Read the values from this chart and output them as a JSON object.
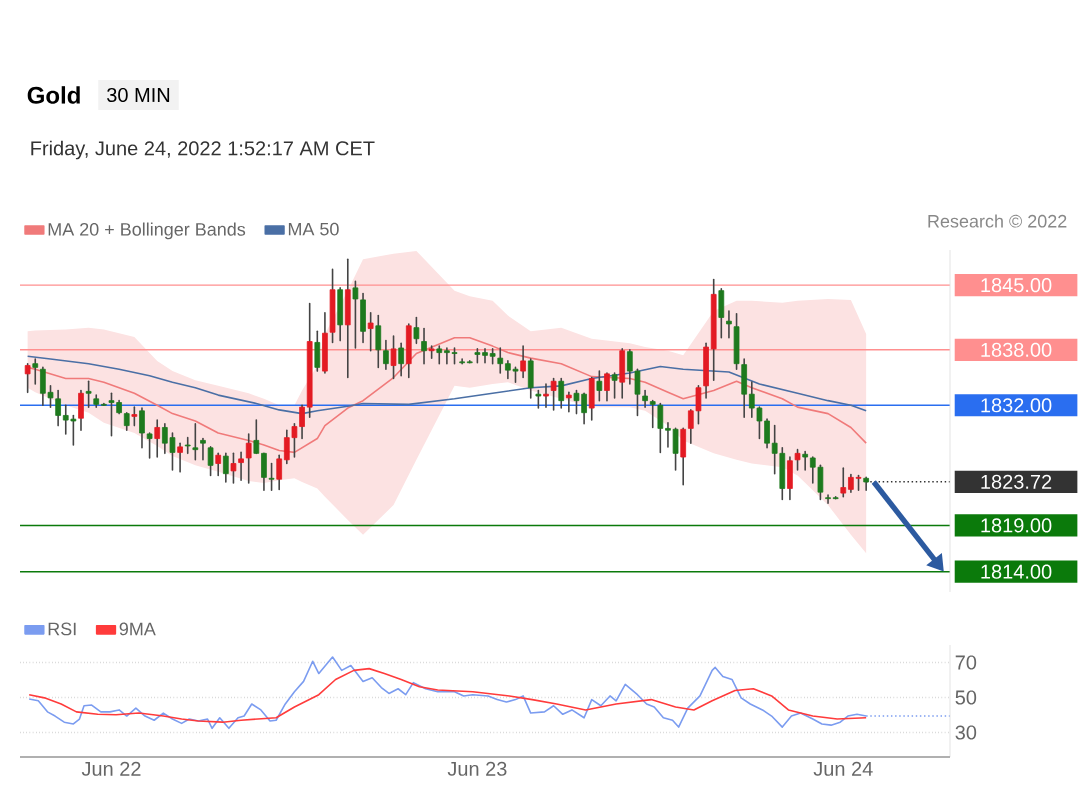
{
  "chart_data": [
    {
      "type": "candlestick",
      "title": "Gold",
      "subtitle": "30 MIN",
      "annotations": [
        "Friday, June 24, 2022 1:52:17 AM CET",
        "Research © 2022"
      ],
      "x": [
        "2022-06-21T18:30",
        "2022-06-21T19:00",
        "2022-06-21T19:30",
        "2022-06-21T20:00",
        "2022-06-21T20:30",
        "2022-06-21T21:00",
        "2022-06-21T21:30",
        "2022-06-21T22:00",
        "2022-06-21T22:30",
        "2022-06-21T23:00",
        "2022-06-21T23:30",
        "2022-06-22T00:00",
        "2022-06-22T00:30",
        "2022-06-22T01:00",
        "2022-06-22T01:30",
        "2022-06-22T02:00",
        "2022-06-22T02:30",
        "2022-06-22T03:00",
        "2022-06-22T03:30",
        "2022-06-22T04:00",
        "2022-06-22T04:30",
        "2022-06-22T05:00",
        "2022-06-22T05:30",
        "2022-06-22T06:00",
        "2022-06-22T06:30",
        "2022-06-22T07:00",
        "2022-06-22T07:30",
        "2022-06-22T08:00",
        "2022-06-22T08:30",
        "2022-06-22T09:00",
        "2022-06-22T09:30",
        "2022-06-22T10:00",
        "2022-06-22T10:30",
        "2022-06-22T11:00",
        "2022-06-22T11:30",
        "2022-06-22T12:00",
        "2022-06-22T12:30",
        "2022-06-22T13:00",
        "2022-06-22T13:30",
        "2022-06-22T14:00",
        "2022-06-22T14:30",
        "2022-06-22T15:00",
        "2022-06-22T15:30",
        "2022-06-22T16:00",
        "2022-06-22T16:30",
        "2022-06-22T17:00",
        "2022-06-22T17:30",
        "2022-06-22T18:00",
        "2022-06-22T18:30",
        "2022-06-22T19:00",
        "2022-06-22T19:30",
        "2022-06-22T20:00",
        "2022-06-22T20:30",
        "2022-06-22T21:00",
        "2022-06-22T21:30",
        "2022-06-22T22:00",
        "2022-06-22T22:30",
        "2022-06-22T23:00",
        "2022-06-22T23:30",
        "2022-06-23T00:00",
        "2022-06-23T00:30",
        "2022-06-23T01:00",
        "2022-06-23T01:30",
        "2022-06-23T02:00",
        "2022-06-23T02:30",
        "2022-06-23T03:00",
        "2022-06-23T03:30",
        "2022-06-23T04:00",
        "2022-06-23T04:30",
        "2022-06-23T05:00",
        "2022-06-23T05:30",
        "2022-06-23T06:00",
        "2022-06-23T06:30",
        "2022-06-23T07:00",
        "2022-06-23T07:30",
        "2022-06-23T08:00",
        "2022-06-23T08:30",
        "2022-06-23T09:00",
        "2022-06-23T09:30",
        "2022-06-23T10:00",
        "2022-06-23T10:30",
        "2022-06-23T11:00",
        "2022-06-23T11:30",
        "2022-06-23T12:00",
        "2022-06-23T12:30",
        "2022-06-23T13:00",
        "2022-06-23T13:30",
        "2022-06-23T14:00",
        "2022-06-23T14:30",
        "2022-06-23T15:00",
        "2022-06-23T15:30",
        "2022-06-23T16:00",
        "2022-06-23T16:30",
        "2022-06-23T17:00",
        "2022-06-23T17:30",
        "2022-06-23T18:00",
        "2022-06-23T18:30",
        "2022-06-23T19:00",
        "2022-06-23T19:30",
        "2022-06-23T20:00",
        "2022-06-23T20:30",
        "2022-06-23T21:00",
        "2022-06-23T21:30",
        "2022-06-23T22:00",
        "2022-06-23T22:30",
        "2022-06-23T23:00",
        "2022-06-23T23:30",
        "2022-06-24T00:00",
        "2022-06-24T00:30",
        "2022-06-24T01:00",
        "2022-06-24T01:30"
      ],
      "ohlc": [
        [
          1835.4,
          1836.5,
          1833.4,
          1836.3
        ],
        [
          1836.5,
          1837.0,
          1834.3,
          1836.1
        ],
        [
          1835.9,
          1836.1,
          1832.0,
          1833.3
        ],
        [
          1833.4,
          1834.1,
          1831.8,
          1832.8
        ],
        [
          1832.7,
          1833.6,
          1829.8,
          1830.9
        ],
        [
          1830.9,
          1832.0,
          1828.9,
          1830.4
        ],
        [
          1830.5,
          1830.9,
          1827.7,
          1830.3
        ],
        [
          1830.6,
          1833.6,
          1829.3,
          1833.3
        ],
        [
          1833.5,
          1834.6,
          1831.8,
          1833.3
        ],
        [
          1832.7,
          1833.1,
          1831.8,
          1832.1
        ],
        [
          1832.1,
          1832.2,
          1832.0,
          1832.0
        ],
        [
          1832.5,
          1833.3,
          1828.7,
          1832.3
        ],
        [
          1832.3,
          1832.5,
          1831.1,
          1831.2
        ],
        [
          1831.1,
          1831.2,
          1829.3,
          1829.8
        ],
        [
          1830.8,
          1831.8,
          1829.8,
          1831.0
        ],
        [
          1831.4,
          1831.7,
          1827.4,
          1829.0
        ],
        [
          1828.9,
          1829.0,
          1826.3,
          1828.4
        ],
        [
          1828.4,
          1830.4,
          1826.4,
          1829.6
        ],
        [
          1829.6,
          1830.0,
          1826.8,
          1827.9
        ],
        [
          1828.5,
          1829.0,
          1825.0,
          1826.9
        ],
        [
          1826.9,
          1827.9,
          1824.8,
          1827.5
        ],
        [
          1827.7,
          1828.5,
          1826.8,
          1827.6
        ],
        [
          1827.4,
          1830.0,
          1826.1,
          1827.2
        ],
        [
          1828.2,
          1828.4,
          1826.1,
          1827.9
        ],
        [
          1827.4,
          1827.5,
          1824.4,
          1825.5
        ],
        [
          1825.7,
          1826.8,
          1824.4,
          1826.6
        ],
        [
          1826.5,
          1826.8,
          1823.7,
          1824.6
        ],
        [
          1824.9,
          1826.8,
          1823.6,
          1825.7
        ],
        [
          1825.8,
          1826.9,
          1823.9,
          1826.2
        ],
        [
          1826.3,
          1828.9,
          1823.6,
          1827.9
        ],
        [
          1828.2,
          1830.4,
          1826.8,
          1826.8
        ],
        [
          1826.8,
          1826.8,
          1822.8,
          1824.2
        ],
        [
          1824.1,
          1825.7,
          1822.8,
          1824.0
        ],
        [
          1824.0,
          1826.6,
          1822.9,
          1826.2
        ],
        [
          1826.1,
          1829.3,
          1825.7,
          1828.5
        ],
        [
          1828.5,
          1830.0,
          1826.4,
          1829.7
        ],
        [
          1829.7,
          1832.0,
          1828.4,
          1831.8
        ],
        [
          1831.8,
          1843.0,
          1830.7,
          1838.9
        ],
        [
          1838.8,
          1840.0,
          1835.7,
          1836.1
        ],
        [
          1835.7,
          1842.0,
          1835.5,
          1839.8
        ],
        [
          1839.9,
          1846.7,
          1838.8,
          1844.5
        ],
        [
          1844.5,
          1844.7,
          1839.0,
          1840.7
        ],
        [
          1840.7,
          1847.8,
          1835.0,
          1844.5
        ],
        [
          1844.7,
          1845.4,
          1838.2,
          1843.5
        ],
        [
          1843.4,
          1844.1,
          1838.8,
          1840.0
        ],
        [
          1840.3,
          1842.0,
          1837.9,
          1840.9
        ],
        [
          1840.6,
          1841.7,
          1836.1,
          1838.0
        ],
        [
          1837.9,
          1839.0,
          1835.9,
          1836.5
        ],
        [
          1836.3,
          1839.5,
          1834.9,
          1838.1
        ],
        [
          1838.2,
          1838.7,
          1835.2,
          1836.5
        ],
        [
          1836.5,
          1840.8,
          1835.0,
          1840.6
        ],
        [
          1840.4,
          1841.5,
          1838.7,
          1839.2
        ],
        [
          1838.9,
          1840.3,
          1836.5,
          1837.9
        ],
        [
          1837.9,
          1838.4,
          1837.1,
          1838.1
        ],
        [
          1838.1,
          1838.4,
          1836.5,
          1837.7
        ],
        [
          1837.9,
          1838.2,
          1836.5,
          1837.7
        ],
        [
          1837.7,
          1838.2,
          1836.5,
          1837.6
        ],
        [
          1836.7,
          1837.0,
          1836.5,
          1836.6
        ],
        [
          1836.7,
          1836.8,
          1836.6,
          1836.6
        ],
        [
          1837.7,
          1838.1,
          1836.6,
          1837.5
        ],
        [
          1837.7,
          1838.1,
          1836.6,
          1837.4
        ],
        [
          1837.6,
          1838.1,
          1836.5,
          1837.3
        ],
        [
          1837.1,
          1838.2,
          1835.5,
          1836.5
        ],
        [
          1836.5,
          1836.8,
          1834.9,
          1835.8
        ],
        [
          1835.9,
          1836.1,
          1834.5,
          1835.7
        ],
        [
          1835.7,
          1838.4,
          1835.0,
          1836.8
        ],
        [
          1836.8,
          1837.0,
          1832.8,
          1833.9
        ],
        [
          1833.2,
          1833.6,
          1831.7,
          1833.0
        ],
        [
          1833.0,
          1834.3,
          1831.8,
          1833.2
        ],
        [
          1833.6,
          1834.9,
          1831.5,
          1834.6
        ],
        [
          1834.6,
          1834.9,
          1831.7,
          1832.5
        ],
        [
          1832.8,
          1833.4,
          1831.3,
          1833.1
        ],
        [
          1833.3,
          1833.6,
          1831.1,
          1832.5
        ],
        [
          1833.2,
          1833.3,
          1830.0,
          1831.2
        ],
        [
          1831.7,
          1835.0,
          1830.4,
          1834.9
        ],
        [
          1834.6,
          1835.7,
          1832.5,
          1833.6
        ],
        [
          1833.6,
          1835.5,
          1832.5,
          1835.4
        ],
        [
          1835.3,
          1835.5,
          1832.8,
          1834.7
        ],
        [
          1834.5,
          1838.1,
          1832.8,
          1837.9
        ],
        [
          1837.8,
          1838.0,
          1834.3,
          1835.7
        ],
        [
          1835.7,
          1835.9,
          1830.9,
          1833.2
        ],
        [
          1833.0,
          1833.6,
          1831.8,
          1832.5
        ],
        [
          1832.4,
          1832.5,
          1829.6,
          1832.1
        ],
        [
          1832.0,
          1832.2,
          1826.9,
          1829.5
        ],
        [
          1829.5,
          1830.1,
          1827.5,
          1829.3
        ],
        [
          1829.4,
          1829.5,
          1825.0,
          1826.8
        ],
        [
          1826.4,
          1829.5,
          1823.4,
          1829.4
        ],
        [
          1829.5,
          1831.5,
          1827.9,
          1831.4
        ],
        [
          1831.4,
          1834.1,
          1830.0,
          1833.9
        ],
        [
          1834.1,
          1838.7,
          1832.8,
          1838.3
        ],
        [
          1838.1,
          1845.6,
          1834.7,
          1844.0
        ],
        [
          1844.4,
          1844.6,
          1839.3,
          1841.5
        ],
        [
          1841.1,
          1842.2,
          1839.3,
          1840.8
        ],
        [
          1840.5,
          1841.9,
          1835.9,
          1836.5
        ],
        [
          1836.4,
          1837.0,
          1830.7,
          1833.2
        ],
        [
          1833.2,
          1834.5,
          1830.7,
          1831.7
        ],
        [
          1831.7,
          1831.8,
          1828.4,
          1830.3
        ],
        [
          1830.3,
          1830.5,
          1827.4,
          1827.9
        ],
        [
          1827.9,
          1829.8,
          1824.6,
          1826.8
        ],
        [
          1826.8,
          1827.4,
          1821.8,
          1823.0
        ],
        [
          1823.0,
          1826.4,
          1821.8,
          1826.0
        ],
        [
          1826.1,
          1827.2,
          1825.0,
          1826.8
        ],
        [
          1826.7,
          1827.0,
          1825.0,
          1826.4
        ],
        [
          1826.3,
          1826.4,
          1823.6,
          1825.3
        ],
        [
          1825.3,
          1825.5,
          1821.8,
          1822.6
        ],
        [
          1822.0,
          1822.3,
          1821.4,
          1821.9
        ],
        [
          1822.0,
          1822.1,
          1821.9,
          1821.9
        ],
        [
          1822.5,
          1825.2,
          1822.1,
          1823.1
        ],
        [
          1822.9,
          1824.5,
          1822.6,
          1824.2
        ],
        [
          1824.1,
          1824.4,
          1822.8,
          1824.2
        ],
        [
          1824.1,
          1824.2,
          1822.8,
          1823.7
        ]
      ],
      "colors": [
        "#e31b23",
        "#1e7a1e",
        "#1e7a1e",
        "#1e7a1e",
        "#1e7a1e",
        "#1e7a1e",
        "#1e7a1e",
        "#e31b23",
        "#1e7a1e",
        "#1e7a1e",
        "#1e7a1e",
        "#1e7a1e",
        "#1e7a1e",
        "#1e7a1e",
        "#e31b23",
        "#1e7a1e",
        "#1e7a1e",
        "#e31b23",
        "#1e7a1e",
        "#1e7a1e",
        "#e31b23",
        "#1e7a1e",
        "#1e7a1e",
        "#1e7a1e",
        "#1e7a1e",
        "#e31b23",
        "#1e7a1e",
        "#e31b23",
        "#e31b23",
        "#e31b23",
        "#1e7a1e",
        "#1e7a1e",
        "#1e7a1e",
        "#e31b23",
        "#e31b23",
        "#e31b23",
        "#e31b23",
        "#e31b23",
        "#1e7a1e",
        "#e31b23",
        "#e31b23",
        "#1e7a1e",
        "#e31b23",
        "#1e7a1e",
        "#1e7a1e",
        "#e31b23",
        "#1e7a1e",
        "#1e7a1e",
        "#e31b23",
        "#1e7a1e",
        "#e31b23",
        "#1e7a1e",
        "#1e7a1e",
        "#e31b23",
        "#1e7a1e",
        "#1e7a1e",
        "#1e7a1e",
        "#1e7a1e",
        "#1e7a1e",
        "#1e7a1e",
        "#1e7a1e",
        "#1e7a1e",
        "#1e7a1e",
        "#1e7a1e",
        "#1e7a1e",
        "#e31b23",
        "#1e7a1e",
        "#1e7a1e",
        "#e31b23",
        "#e31b23",
        "#1e7a1e",
        "#e31b23",
        "#1e7a1e",
        "#1e7a1e",
        "#e31b23",
        "#1e7a1e",
        "#e31b23",
        "#1e7a1e",
        "#e31b23",
        "#1e7a1e",
        "#1e7a1e",
        "#1e7a1e",
        "#1e7a1e",
        "#1e7a1e",
        "#1e7a1e",
        "#1e7a1e",
        "#e31b23",
        "#e31b23",
        "#e31b23",
        "#e31b23",
        "#e31b23",
        "#1e7a1e",
        "#1e7a1e",
        "#1e7a1e",
        "#1e7a1e",
        "#1e7a1e",
        "#1e7a1e",
        "#1e7a1e",
        "#1e7a1e",
        "#1e7a1e",
        "#e31b23",
        "#e31b23",
        "#1e7a1e",
        "#1e7a1e",
        "#1e7a1e",
        "#1e7a1e",
        "#1e7a1e",
        "#e31b23",
        "#e31b23",
        "#e31b23",
        "#1e7a1e"
      ],
      "series": [
        {
          "type": "line",
          "name": "MA 20 + Bollinger Bands",
          "color": "#f07a7a",
          "x": [
            "2022-06-21T18:30",
            "2022-06-21T19:00",
            "2022-06-21T21:00",
            "2022-06-21T22:30",
            "2022-06-21T23:30",
            "2022-06-22T01:30",
            "2022-06-22T03:00",
            "2022-06-22T04:00",
            "2022-06-22T05:30",
            "2022-06-22T07:00",
            "2022-06-22T09:00",
            "2022-06-22T10:00",
            "2022-06-22T11:00",
            "2022-06-22T12:00",
            "2022-06-22T12:30",
            "2022-06-22T13:30",
            "2022-06-22T14:00",
            "2022-06-22T15:30",
            "2022-06-22T16:30",
            "2022-06-22T18:30",
            "2022-06-22T20:00",
            "2022-06-22T22:30",
            "2022-06-22T23:30",
            "2022-06-23T01:00",
            "2022-06-23T02:00",
            "2022-06-23T03:30",
            "2022-06-23T05:30",
            "2022-06-23T07:30",
            "2022-06-23T10:00",
            "2022-06-23T11:00",
            "2022-06-23T12:30",
            "2022-06-23T13:30",
            "2022-06-23T15:30",
            "2022-06-23T17:00",
            "2022-06-23T18:00",
            "2022-06-23T20:00",
            "2022-06-23T21:00",
            "2022-06-23T23:00",
            "2022-06-24T00:30",
            "2022-06-24T01:30"
          ],
          "values": [
            1836.1,
            1835.9,
            1834.9,
            1834.9,
            1834.5,
            1833.3,
            1832.0,
            1831.1,
            1830.3,
            1829.0,
            1828.2,
            1827.7,
            1827.1,
            1826.9,
            1827.4,
            1828.4,
            1829.8,
            1831.7,
            1832.5,
            1835.0,
            1837.6,
            1839.3,
            1839.3,
            1838.4,
            1837.7,
            1837.1,
            1836.5,
            1835.1,
            1834.9,
            1834.5,
            1833.4,
            1832.7,
            1833.6,
            1834.6,
            1833.9,
            1832.7,
            1831.8,
            1831.1,
            1829.6,
            1827.9
          ],
          "upper": [
            1840.0,
            1840.1,
            1840.2,
            1840.4,
            1840.2,
            1839.4,
            1836.8,
            1835.7,
            1834.7,
            1834.1,
            1833.3,
            1832.7,
            1832.0,
            1832.0,
            1833.6,
            1836.3,
            1839.7,
            1844.4,
            1847.8,
            1848.4,
            1848.7,
            1844.4,
            1843.8,
            1843.3,
            1841.7,
            1840.0,
            1840.4,
            1839.2,
            1838.7,
            1838.3,
            1837.9,
            1837.4,
            1842.2,
            1843.3,
            1843.3,
            1843.1,
            1843.3,
            1843.5,
            1843.4,
            1839.7
          ],
          "lower": [
            1833.9,
            1833.4,
            1832.0,
            1831.2,
            1830.1,
            1829.0,
            1827.6,
            1826.5,
            1825.5,
            1824.8,
            1823.8,
            1823.6,
            1823.9,
            1824.1,
            1823.7,
            1823.0,
            1822.1,
            1819.6,
            1818.0,
            1821.2,
            1826.1,
            1834.1,
            1833.9,
            1834.3,
            1834.5,
            1833.6,
            1832.7,
            1831.8,
            1831.8,
            1831.4,
            1829.8,
            1828.2,
            1826.8,
            1826.1,
            1825.7,
            1825.3,
            1824.4,
            1821.2,
            1818.0,
            1816.0
          ]
        },
        {
          "type": "line",
          "name": "MA 50",
          "color": "#4a6fa5",
          "x": [
            "2022-06-21T18:30",
            "2022-06-21T20:00",
            "2022-06-21T22:30",
            "2022-06-22T00:30",
            "2022-06-22T02:30",
            "2022-06-22T04:00",
            "2022-06-22T05:30",
            "2022-06-22T07:00",
            "2022-06-22T09:30",
            "2022-06-22T11:00",
            "2022-06-22T12:30",
            "2022-06-22T13:30",
            "2022-06-22T15:30",
            "2022-06-22T16:30",
            "2022-06-22T19:30",
            "2022-06-22T22:30",
            "2022-06-23T01:00",
            "2022-06-23T03:30",
            "2022-06-23T05:30",
            "2022-06-23T07:30",
            "2022-06-23T10:00",
            "2022-06-23T12:00",
            "2022-06-23T13:30",
            "2022-06-23T16:30",
            "2022-06-23T18:30",
            "2022-06-23T21:00",
            "2022-06-23T23:00",
            "2022-06-24T00:30",
            "2022-06-24T01:30"
          ],
          "values": [
            1837.3,
            1837.0,
            1836.5,
            1835.9,
            1835.2,
            1834.5,
            1833.9,
            1833.1,
            1832.2,
            1831.5,
            1831.1,
            1831.4,
            1831.9,
            1832.2,
            1832.1,
            1832.7,
            1833.3,
            1833.9,
            1834.1,
            1834.9,
            1835.5,
            1836.2,
            1835.9,
            1835.6,
            1834.3,
            1833.3,
            1832.5,
            1832.0,
            1831.4
          ]
        }
      ],
      "xlim": [
        "2022-06-21T18:00",
        "2022-06-24T07:00"
      ],
      "ylim": [
        1811.8,
        1848.8
      ],
      "tick_labels": "y",
      "legend": "top left",
      "yticks": [
        {
          "value": 1814,
          "label": "1814.00"
        },
        {
          "value": 1819,
          "label": "1819.00"
        },
        {
          "value": 1823.72,
          "label": "1823.72"
        },
        {
          "value": 1832,
          "label": "1832.00"
        },
        {
          "value": 1838,
          "label": "1838.00"
        },
        {
          "value": 1845,
          "label": "1845.00"
        }
      ],
      "ref_lines": [
        {
          "axis": "y",
          "value": 1845,
          "color": "#ff8f8f",
          "line_style": "solid"
        },
        {
          "axis": "y",
          "value": 1838,
          "color": "#ff8f8f",
          "line_style": "solid"
        },
        {
          "axis": "y",
          "value": 1832,
          "color": "#2a6ef0",
          "line_style": "solid"
        },
        {
          "axis": "y",
          "value": 1823.72,
          "color": "#333333",
          "line_style": "dotted"
        },
        {
          "axis": "y",
          "value": 1819,
          "color": "#0b7a0b",
          "line_style": "solid"
        },
        {
          "axis": "y",
          "value": 1814,
          "color": "#0b7a0b",
          "line_style": "solid"
        }
      ]
    },
    {
      "type": "line",
      "series": [
        {
          "name": "RSI",
          "color": "#7b9cf0",
          "x": [
            "2022-06-21T18:36",
            "2022-06-21T19:12",
            "2022-06-21T19:48",
            "2022-06-21T20:18",
            "2022-06-21T20:54",
            "2022-06-21T21:30",
            "2022-06-21T21:54",
            "2022-06-21T22:12",
            "2022-06-21T22:42",
            "2022-06-21T23:18",
            "2022-06-21T23:54",
            "2022-06-22T00:30",
            "2022-06-22T01:00",
            "2022-06-22T01:36",
            "2022-06-22T02:12",
            "2022-06-22T02:48",
            "2022-06-22T03:24",
            "2022-06-22T04:00",
            "2022-06-22T04:36",
            "2022-06-22T05:06",
            "2022-06-22T05:42",
            "2022-06-22T06:18",
            "2022-06-22T06:36",
            "2022-06-22T07:06",
            "2022-06-22T07:42",
            "2022-06-22T08:18",
            "2022-06-22T08:42",
            "2022-06-22T09:12",
            "2022-06-22T09:48",
            "2022-06-22T10:24",
            "2022-06-22T10:48",
            "2022-06-22T11:24",
            "2022-06-22T12:00",
            "2022-06-22T12:36",
            "2022-06-22T13:12",
            "2022-06-22T13:36",
            "2022-06-22T14:30",
            "2022-06-22T15:06",
            "2022-06-22T15:42",
            "2022-06-22T16:30",
            "2022-06-22T17:06",
            "2022-06-22T17:42",
            "2022-06-22T18:12",
            "2022-06-22T18:48",
            "2022-06-22T19:18",
            "2022-06-22T19:48",
            "2022-06-22T20:36",
            "2022-06-22T21:24",
            "2022-06-22T22:30",
            "2022-06-22T23:06",
            "2022-06-22T23:42",
            "2022-06-23T00:42",
            "2022-06-23T01:18",
            "2022-06-23T01:54",
            "2022-06-23T02:30",
            "2022-06-23T03:00",
            "2022-06-23T03:30",
            "2022-06-23T04:24",
            "2022-06-23T05:00",
            "2022-06-23T05:36",
            "2022-06-23T06:12",
            "2022-06-23T07:00",
            "2022-06-23T07:30",
            "2022-06-23T08:06",
            "2022-06-23T08:42",
            "2022-06-23T09:06",
            "2022-06-23T09:42",
            "2022-06-23T10:30",
            "2022-06-23T11:06",
            "2022-06-23T11:36",
            "2022-06-23T12:12",
            "2022-06-23T12:48",
            "2022-06-23T13:12",
            "2022-06-23T13:48",
            "2022-06-23T14:36",
            "2022-06-23T15:24",
            "2022-06-23T15:36",
            "2022-06-23T16:06",
            "2022-06-23T16:42",
            "2022-06-23T17:18",
            "2022-06-23T17:54",
            "2022-06-23T18:42",
            "2022-06-23T19:18",
            "2022-06-23T20:00",
            "2022-06-23T20:36",
            "2022-06-23T21:12",
            "2022-06-23T22:00",
            "2022-06-23T22:36",
            "2022-06-23T23:12",
            "2022-06-23T23:48",
            "2022-06-24T00:18",
            "2022-06-24T00:54",
            "2022-06-24T01:30"
          ],
          "values": [
            49.1,
            48.1,
            41.8,
            39.4,
            35.9,
            34.9,
            37.7,
            45.3,
            45.7,
            41.8,
            41.8,
            42.9,
            39.4,
            43.9,
            39.4,
            37.0,
            41.1,
            37.7,
            35.2,
            37.7,
            36.6,
            37.7,
            32.4,
            38.4,
            32.4,
            38.4,
            39.4,
            46.3,
            42.9,
            36.6,
            37.0,
            46.3,
            53.3,
            59.2,
            70.7,
            63.7,
            73.1,
            65.5,
            68.3,
            59.2,
            61.3,
            55.7,
            52.3,
            55.0,
            51.6,
            58.5,
            55.0,
            53.3,
            53.3,
            50.9,
            51.6,
            50.9,
            48.8,
            47.4,
            48.8,
            50.9,
            41.1,
            41.8,
            45.3,
            40.4,
            42.9,
            38.4,
            48.8,
            45.3,
            50.9,
            48.1,
            57.5,
            51.6,
            46.3,
            44.6,
            38.4,
            37.0,
            33.1,
            43.9,
            50.9,
            65.5,
            67.2,
            62.0,
            60.3,
            49.8,
            46.3,
            42.9,
            39.4,
            33.1,
            39.4,
            41.1,
            37.7,
            34.9,
            34.2,
            35.9,
            39.4,
            40.4,
            39.4
          ]
        },
        {
          "name": "9MA",
          "color": "#ff3b3b",
          "x": [
            "2022-06-21T18:36",
            "2022-06-21T19:36",
            "2022-06-21T20:42",
            "2022-06-21T21:42",
            "2022-06-21T23:06",
            "2022-06-22T00:18",
            "2022-06-22T01:48",
            "2022-06-22T03:24",
            "2022-06-22T04:36",
            "2022-06-22T05:42",
            "2022-06-22T07:18",
            "2022-06-22T08:30",
            "2022-06-22T09:36",
            "2022-06-22T10:48",
            "2022-06-22T12:00",
            "2022-06-22T13:36",
            "2022-06-22T14:42",
            "2022-06-22T15:54",
            "2022-06-22T16:54",
            "2022-06-22T17:54",
            "2022-06-22T19:00",
            "2022-06-22T20:12",
            "2022-06-22T21:24",
            "2022-06-22T23:42",
            "2022-06-23T02:06",
            "2022-06-23T03:36",
            "2022-06-23T05:12",
            "2022-06-23T07:06",
            "2022-06-23T09:06",
            "2022-06-23T11:24",
            "2022-06-23T13:00",
            "2022-06-23T14:12",
            "2022-06-23T15:24",
            "2022-06-23T16:54",
            "2022-06-23T18:06",
            "2022-06-23T19:18",
            "2022-06-23T20:24",
            "2022-06-23T22:00",
            "2022-06-23T23:36",
            "2022-06-24T01:30"
          ],
          "values": [
            51.6,
            49.8,
            46.3,
            41.8,
            40.4,
            40.1,
            41.1,
            39.4,
            37.7,
            36.6,
            35.9,
            37.0,
            37.7,
            38.4,
            44.6,
            51.6,
            60.3,
            65.5,
            66.5,
            63.7,
            60.3,
            56.1,
            54.3,
            53.3,
            50.9,
            48.8,
            46.3,
            42.9,
            46.3,
            48.8,
            44.6,
            42.9,
            48.1,
            54.0,
            55.0,
            50.9,
            42.9,
            39.4,
            37.7,
            38.4
          ]
        }
      ],
      "xlim": [
        "2022-06-21T18:00",
        "2022-06-24T07:00"
      ],
      "ylim": [
        16,
        80
      ],
      "xticks": [
        {
          "value": "2022-06-22",
          "label": "Jun 22"
        },
        {
          "value": "2022-06-23",
          "label": "Jun 23"
        },
        {
          "value": "2022-06-24",
          "label": "Jun 24"
        }
      ],
      "yticks": [
        30,
        50,
        70
      ],
      "grid": "y",
      "legend": "top left",
      "ref_lines": [
        {
          "axis": "y",
          "value": 39.4,
          "color": "#7b9cf0",
          "line_style": "dotted"
        }
      ]
    }
  ]
}
